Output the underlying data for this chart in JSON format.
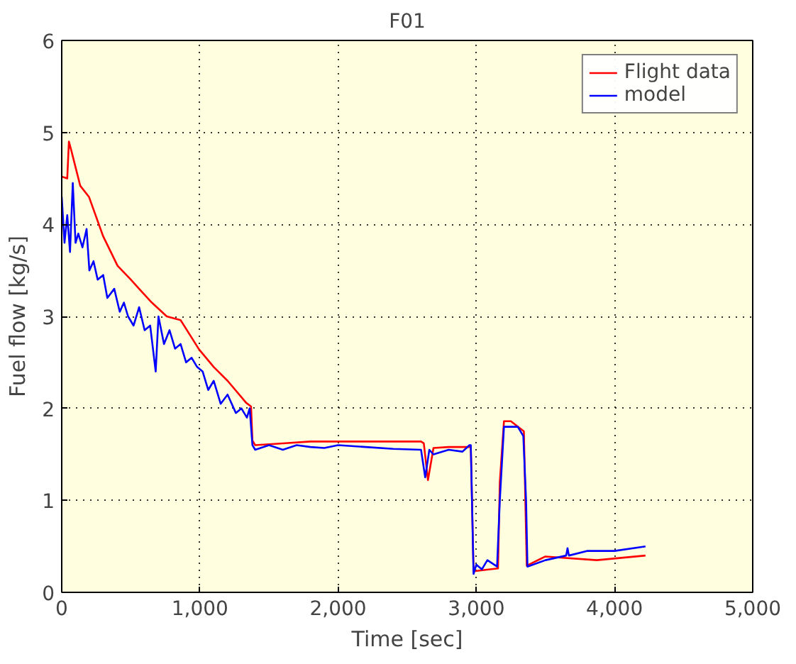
{
  "chart_data": {
    "type": "line",
    "title": "F01",
    "xlabel": "Time [sec]",
    "ylabel": "Fuel flow [kg/s]",
    "xlim": [
      0,
      5000
    ],
    "ylim": [
      0,
      6
    ],
    "xticks": [
      0,
      {
        "value": 1000,
        "label": "1,000"
      },
      {
        "value": 2000,
        "label": "2,000"
      },
      {
        "value": 3000,
        "label": "3,000"
      },
      {
        "value": 4000,
        "label": "4,000"
      },
      {
        "value": 5000,
        "label": "5,000"
      }
    ],
    "yticks": [
      0,
      1,
      2,
      3,
      4,
      5,
      6
    ],
    "grid": true,
    "legend": "top right",
    "line_style": "solid",
    "marker": "none",
    "series": [
      {
        "name": "Flight data",
        "color": "#ff0000",
        "x": [
          0,
          40,
          52,
          70,
          134,
          197,
          300,
          404,
          500,
          560,
          652,
          760,
          860,
          994,
          1100,
          1200,
          1335,
          1370,
          1380,
          1400,
          1600,
          1800,
          2000,
          2200,
          2400,
          2600,
          2620,
          2650,
          2690,
          2800,
          2960,
          2980,
          3157,
          3170,
          3200,
          3250,
          3344,
          3365,
          3500,
          3872,
          4224
        ],
        "values": [
          4.52,
          4.5,
          4.9,
          4.8,
          4.42,
          4.3,
          3.87,
          3.55,
          3.4,
          3.3,
          3.15,
          3.0,
          2.96,
          2.64,
          2.45,
          2.3,
          2.06,
          2.02,
          1.65,
          1.6,
          1.62,
          1.64,
          1.64,
          1.64,
          1.64,
          1.64,
          1.62,
          1.22,
          1.57,
          1.58,
          1.58,
          0.23,
          0.26,
          1.2,
          1.86,
          1.86,
          1.75,
          0.29,
          0.39,
          0.35,
          0.4
        ]
      },
      {
        "name": "model",
        "color": "#0000ff",
        "x": [
          0,
          20,
          40,
          60,
          80,
          100,
          120,
          150,
          180,
          200,
          230,
          260,
          300,
          330,
          380,
          420,
          450,
          480,
          520,
          560,
          600,
          640,
          680,
          700,
          740,
          780,
          820,
          860,
          900,
          940,
          980,
          1020,
          1060,
          1100,
          1150,
          1200,
          1260,
          1300,
          1340,
          1360,
          1380,
          1400,
          1500,
          1600,
          1700,
          1800,
          1900,
          2000,
          2200,
          2400,
          2600,
          2630,
          2660,
          2690,
          2800,
          2900,
          2950,
          2960,
          2980,
          3000,
          3040,
          3080,
          3150,
          3170,
          3200,
          3300,
          3340,
          3360,
          3370,
          3500,
          3650,
          3660,
          3670,
          3800,
          4000,
          4224
        ],
        "values": [
          4.3,
          3.8,
          4.1,
          3.7,
          4.45,
          3.8,
          3.9,
          3.75,
          3.95,
          3.5,
          3.6,
          3.4,
          3.45,
          3.2,
          3.3,
          3.05,
          3.15,
          3.0,
          2.9,
          3.1,
          2.85,
          2.9,
          2.4,
          3.0,
          2.7,
          2.85,
          2.65,
          2.7,
          2.5,
          2.55,
          2.45,
          2.4,
          2.2,
          2.3,
          2.05,
          2.15,
          1.95,
          2.0,
          1.9,
          2.0,
          1.6,
          1.55,
          1.6,
          1.55,
          1.6,
          1.58,
          1.57,
          1.6,
          1.58,
          1.56,
          1.55,
          1.25,
          1.55,
          1.5,
          1.55,
          1.53,
          1.6,
          1.6,
          0.2,
          0.3,
          0.25,
          0.35,
          0.28,
          1.0,
          1.8,
          1.8,
          1.7,
          1.0,
          0.28,
          0.35,
          0.4,
          0.48,
          0.4,
          0.45,
          0.45,
          0.5
        ]
      }
    ]
  }
}
